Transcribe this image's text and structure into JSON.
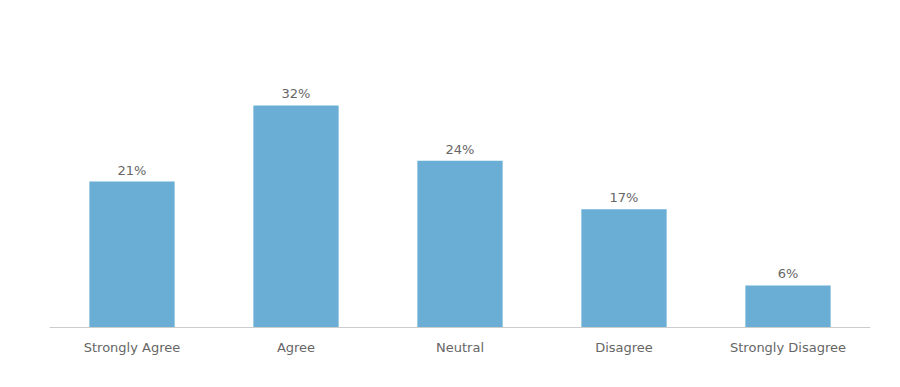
{
  "chart_data": {
    "type": "bar",
    "categories": [
      "Strongly Agree",
      "Agree",
      "Neutral",
      "Disagree",
      "Strongly Disagree"
    ],
    "values": [
      21,
      32,
      24,
      17,
      6
    ],
    "value_labels": [
      "21%",
      "32%",
      "24%",
      "17%",
      "6%"
    ],
    "data_labels": true,
    "color": "#6aaed6",
    "ylim": [
      0,
      40
    ],
    "tick_labels": "x",
    "grid": false
  }
}
